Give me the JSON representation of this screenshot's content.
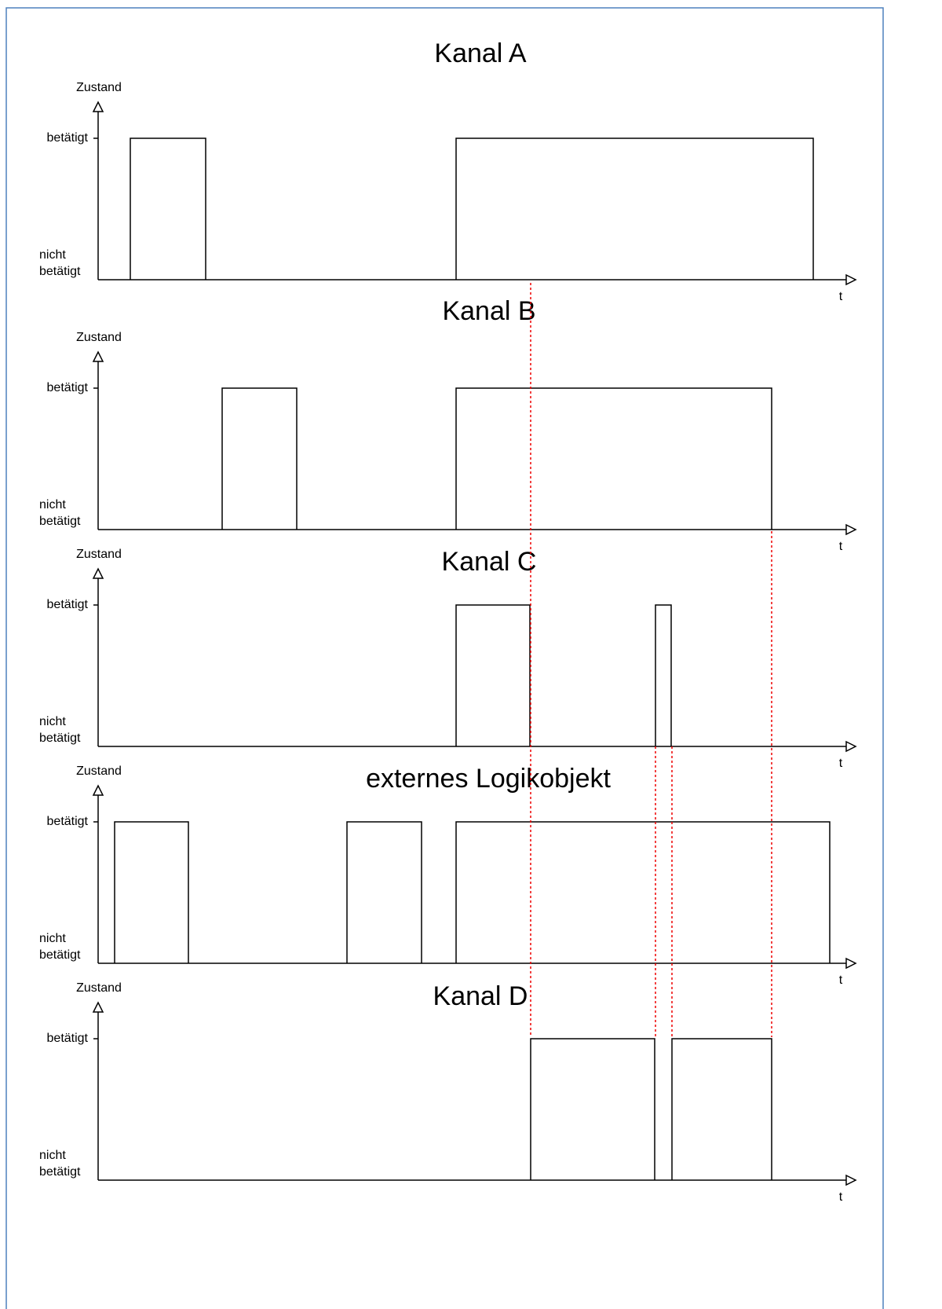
{
  "panels": [
    {
      "title": "Kanal A",
      "y_label": "Zustand",
      "high_label": "betätigt",
      "low_label": [
        "nicht",
        "betätigt"
      ],
      "x_label": "t"
    },
    {
      "title": "Kanal B",
      "y_label": "Zustand",
      "high_label": "betätigt",
      "low_label": [
        "nicht",
        "betätigt"
      ],
      "x_label": "t"
    },
    {
      "title": "Kanal C",
      "y_label": "Zustand",
      "high_label": "betätigt",
      "low_label": [
        "nicht",
        "betätigt"
      ],
      "x_label": "t"
    },
    {
      "title": "externes Logikobjekt",
      "y_label": "Zustand",
      "high_label": "betätigt",
      "low_label": [
        "nicht",
        "betätigt"
      ],
      "x_label": "t"
    },
    {
      "title": "Kanal D",
      "y_label": "Zustand",
      "high_label": "betätigt",
      "low_label": [
        "nicht",
        "betätigt"
      ],
      "x_label": "t"
    }
  ]
}
